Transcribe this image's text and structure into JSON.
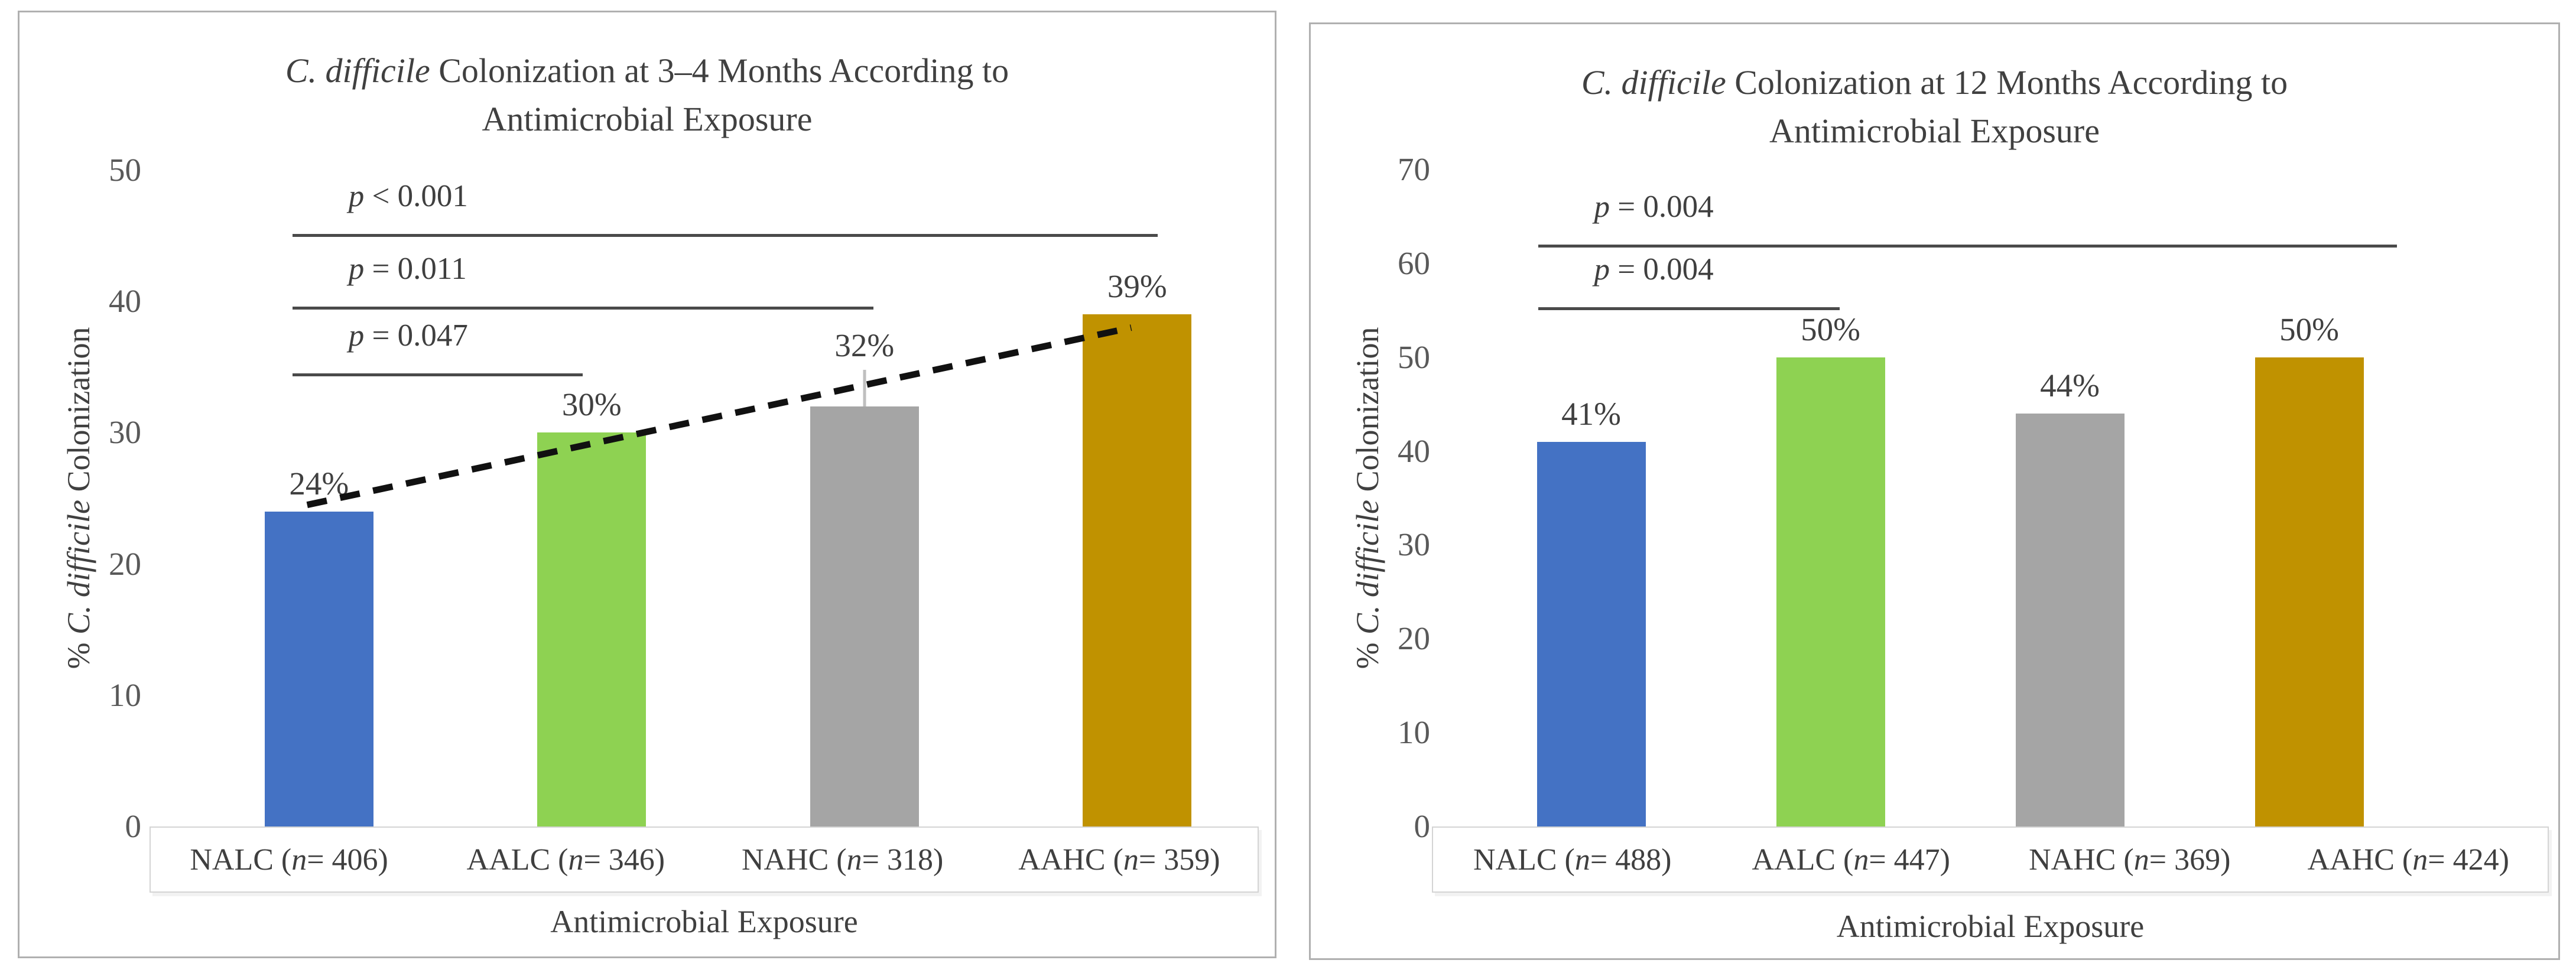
{
  "chart_data": [
    {
      "type": "bar",
      "title_italic": "C. difficile",
      "title_after_italic": " Colonization at 3–4 Months According to",
      "title_line2": "Antimicrobial Exposure",
      "xlabel": "Antimicrobial Exposure",
      "ylabel_prefix": "% ",
      "ylabel_italic": "C. difficile",
      "ylabel_suffix": " Colonization",
      "ylim": [
        0,
        50
      ],
      "yticks": [
        0,
        10,
        20,
        30,
        40,
        50
      ],
      "grid": false,
      "legend": false,
      "categories": [
        {
          "name": "NALC",
          "n": "406"
        },
        {
          "name": "AALC",
          "n": "346"
        },
        {
          "name": "NAHC",
          "n": "318"
        },
        {
          "name": "AAHC",
          "n": "359"
        }
      ],
      "values": [
        24,
        30,
        32,
        39
      ],
      "bar_labels": [
        "24%",
        "30%",
        "32%",
        "39%"
      ],
      "bar_colors": [
        "#4472C4",
        "#8ED252",
        "#A5A5A5",
        "#C09200"
      ],
      "error_up": [
        null,
        null,
        2.8,
        null
      ],
      "significance": [
        {
          "text": "p < 0.001",
          "from": 0,
          "to": 3,
          "y": 44.9,
          "x1_off": -45,
          "x2_off": 35
        },
        {
          "text": "p = 0.011",
          "from": 0,
          "to": 2,
          "y": 39.4,
          "x1_off": -45,
          "x2_off": 15
        },
        {
          "text": "p = 0.047",
          "from": 0,
          "to": 1,
          "y": 34.3,
          "x1_off": -45,
          "x2_off": -15
        }
      ],
      "trend": {
        "style": "dashed",
        "color": "#111111",
        "from_group": 0,
        "from_value": 24.5,
        "to_group": 3,
        "to_value": 38.0,
        "x1_off": -20,
        "x2_off": -10
      }
    },
    {
      "type": "bar",
      "title_italic": "C. difficile",
      "title_after_italic": " Colonization at 12 Months According to",
      "title_line2": "Antimicrobial Exposure",
      "xlabel": "Antimicrobial Exposure",
      "ylabel_prefix": "% ",
      "ylabel_italic": "C. difficile",
      "ylabel_suffix": " Colonization",
      "ylim": [
        0,
        70
      ],
      "yticks": [
        0,
        10,
        20,
        30,
        40,
        50,
        60,
        70
      ],
      "grid": false,
      "legend": false,
      "categories": [
        {
          "name": "NALC",
          "n": "488"
        },
        {
          "name": "AALC",
          "n": "447"
        },
        {
          "name": "NAHC",
          "n": "369"
        },
        {
          "name": "AAHC",
          "n": "424"
        }
      ],
      "values": [
        41,
        50,
        44,
        50
      ],
      "bar_labels": [
        "41%",
        "50%",
        "44%",
        "50%"
      ],
      "bar_colors": [
        "#4472C4",
        "#8ED252",
        "#A5A5A5",
        "#C09200"
      ],
      "error_up": [
        null,
        null,
        null,
        null
      ],
      "significance": [
        {
          "text": "p = 0.004",
          "from": 0,
          "to": 3,
          "y": 61.7,
          "x1_off": -90,
          "x2_off": 148
        },
        {
          "text": "p = 0.004",
          "from": 0,
          "to": 1,
          "y": 55.0,
          "x1_off": -90,
          "x2_off": 15
        }
      ],
      "trend": null
    }
  ]
}
